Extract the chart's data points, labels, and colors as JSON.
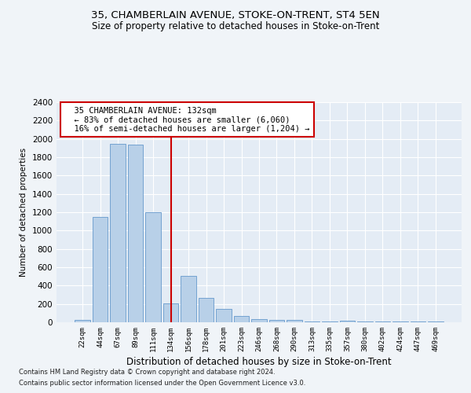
{
  "title1": "35, CHAMBERLAIN AVENUE, STOKE-ON-TRENT, ST4 5EN",
  "title2": "Size of property relative to detached houses in Stoke-on-Trent",
  "xlabel": "Distribution of detached houses by size in Stoke-on-Trent",
  "ylabel": "Number of detached properties",
  "categories": [
    "22sqm",
    "44sqm",
    "67sqm",
    "89sqm",
    "111sqm",
    "134sqm",
    "156sqm",
    "178sqm",
    "201sqm",
    "223sqm",
    "246sqm",
    "268sqm",
    "290sqm",
    "313sqm",
    "335sqm",
    "357sqm",
    "380sqm",
    "402sqm",
    "424sqm",
    "447sqm",
    "469sqm"
  ],
  "values": [
    30,
    1150,
    1950,
    1940,
    1200,
    210,
    510,
    265,
    150,
    65,
    35,
    30,
    25,
    10,
    5,
    15,
    5,
    5,
    5,
    5,
    5
  ],
  "bar_color": "#b8d0e8",
  "bar_edge_color": "#6699cc",
  "highlight_index": 5,
  "highlight_color": "#cc0000",
  "ylim": [
    0,
    2400
  ],
  "yticks": [
    0,
    200,
    400,
    600,
    800,
    1000,
    1200,
    1400,
    1600,
    1800,
    2000,
    2200,
    2400
  ],
  "annotation_text": "  35 CHAMBERLAIN AVENUE: 132sqm\n  ← 83% of detached houses are smaller (6,060)\n  16% of semi-detached houses are larger (1,204) →",
  "annotation_box_color": "#ffffff",
  "annotation_box_edge": "#cc0000",
  "footer1": "Contains HM Land Registry data © Crown copyright and database right 2024.",
  "footer2": "Contains public sector information licensed under the Open Government Licence v3.0.",
  "bg_color": "#f0f4f8",
  "plot_bg_color": "#e4ecf5"
}
